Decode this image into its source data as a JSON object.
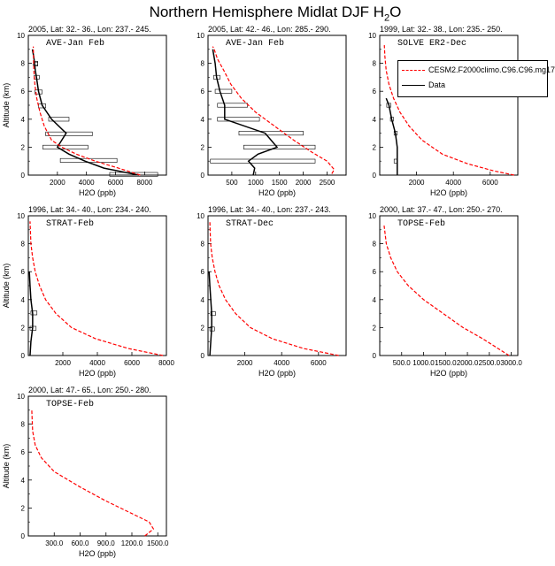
{
  "figure": {
    "title_main": "Northern Hemisphere Midlat DJF H",
    "title_sub": "2",
    "title_end": "O"
  },
  "legend": {
    "model_label": "CESM2.F2000climo.C96.C96.mg17",
    "data_label": "Data",
    "model_color": "#ff0000",
    "data_color": "#000000"
  },
  "chart_data": [
    {
      "type": "line",
      "header": "2005, Lat: 32.- 36., Lon: 237.- 245.",
      "label": "AVE-Jan Feb",
      "xlabel": "H2O (ppb)",
      "ylabel": "Altitude (km)",
      "xlim": [
        0,
        9500
      ],
      "ylim": [
        0,
        10
      ],
      "xticks": [
        2000,
        4000,
        6000,
        8000
      ],
      "xticklabels": [
        "2000",
        "4000",
        "6000",
        "8000"
      ],
      "yticks": [
        0,
        2,
        4,
        6,
        8,
        10
      ],
      "model": {
        "x": [
          7700,
          6200,
          4600,
          3300,
          2300,
          1600,
          1100,
          800,
          580,
          450,
          380,
          340
        ],
        "y": [
          0,
          0.5,
          1,
          1.5,
          2,
          2.5,
          3.5,
          4.5,
          5.5,
          6.5,
          7.5,
          9.2
        ]
      },
      "obs": {
        "x": [
          7600,
          5200,
          3900,
          2800,
          2000,
          2600,
          1600,
          950,
          700,
          560,
          480,
          430,
          370,
          280
        ],
        "y": [
          0,
          0.5,
          1,
          1.5,
          2,
          3,
          4,
          5,
          6,
          7,
          7.5,
          8,
          8.5,
          9
        ]
      },
      "bars": [
        {
          "y": 0.05,
          "lo": 5600,
          "hi": 8900
        },
        {
          "y": 1.05,
          "lo": 2200,
          "hi": 6100
        },
        {
          "y": 2.0,
          "lo": 1000,
          "hi": 4100
        },
        {
          "y": 2.95,
          "lo": 1200,
          "hi": 4400
        },
        {
          "y": 4.0,
          "lo": 1400,
          "hi": 2800
        },
        {
          "y": 4.95,
          "lo": 700,
          "hi": 1200
        },
        {
          "y": 5.95,
          "lo": 450,
          "hi": 950
        },
        {
          "y": 7.0,
          "lo": 400,
          "hi": 750
        },
        {
          "y": 7.95,
          "lo": 350,
          "hi": 650
        },
        {
          "y": 8.0,
          "lo": 350,
          "hi": 650
        }
      ]
    },
    {
      "type": "line",
      "header": "2005, Lat: 42.- 46., Lon: 285.- 290.",
      "label": "AVE-Jan Feb",
      "xlabel": "H2O (ppb)",
      "ylabel": "",
      "xlim": [
        0,
        2900
      ],
      "ylim": [
        0,
        10
      ],
      "xticks": [
        500,
        1000,
        1500,
        2000,
        2500
      ],
      "xticklabels": [
        "500",
        "1000",
        "1500",
        "2000",
        "2500"
      ],
      "yticks": [
        0,
        2,
        4,
        6,
        8,
        10
      ],
      "model": {
        "x": [
          2600,
          2650,
          2500,
          2200,
          1800,
          1400,
          1000,
          700,
          480,
          330,
          200,
          130,
          100
        ],
        "y": [
          0.1,
          0.4,
          1,
          1.6,
          2.5,
          3.5,
          4.5,
          5.5,
          6.5,
          7.5,
          8.3,
          9,
          9.2
        ]
      },
      "obs": {
        "x": [
          950,
          980,
          850,
          1050,
          1450,
          1200,
          350,
          350,
          250,
          180,
          150,
          100
        ],
        "y": [
          0,
          0.5,
          1,
          1.5,
          2,
          3,
          4,
          5,
          6,
          7,
          8,
          9
        ]
      },
      "bars": [
        {
          "y": 1.0,
          "lo": 50,
          "hi": 2250
        },
        {
          "y": 2.0,
          "lo": 750,
          "hi": 2250
        },
        {
          "y": 3.0,
          "lo": 650,
          "hi": 2000
        },
        {
          "y": 4.0,
          "lo": 200,
          "hi": 1080
        },
        {
          "y": 5.0,
          "lo": 200,
          "hi": 830
        },
        {
          "y": 6.0,
          "lo": 150,
          "hi": 500
        },
        {
          "y": 7.0,
          "lo": 120,
          "hi": 250
        }
      ]
    },
    {
      "type": "line",
      "header": "1999, Lat: 32.- 38., Lon: 235.- 250.",
      "label": "SOLVE ER2-Dec",
      "xlabel": "H2O (ppb)",
      "ylabel": "",
      "xlim": [
        0,
        7500
      ],
      "ylim": [
        0,
        10
      ],
      "xticks": [
        2000,
        4000,
        6000
      ],
      "xticklabels": [
        "2000",
        "4000",
        "6000"
      ],
      "yticks": [
        0,
        2,
        4,
        6,
        8,
        10
      ],
      "model": {
        "x": [
          7300,
          6200,
          4800,
          3400,
          2300,
          1600,
          1100,
          750,
          500,
          350,
          280,
          250
        ],
        "y": [
          0,
          0.3,
          0.8,
          1.5,
          2.5,
          3.5,
          4.5,
          5.5,
          6.5,
          7.5,
          8.5,
          9.3
        ]
      },
      "obs": {
        "x": [
          950,
          950,
          950,
          850,
          650,
          500,
          350
        ],
        "y": [
          0,
          1,
          2,
          3,
          4,
          5,
          5.5
        ]
      },
      "bars": [
        {
          "y": 1.0,
          "lo": 780,
          "hi": 950
        },
        {
          "y": 3.0,
          "lo": 780,
          "hi": 950
        },
        {
          "y": 4.0,
          "lo": 580,
          "hi": 750
        },
        {
          "y": 5.0,
          "lo": 380,
          "hi": 600
        }
      ]
    },
    {
      "type": "line",
      "header": "1996, Lat: 34.- 40., Lon: 234.- 240.",
      "label": "STRAT-Feb",
      "xlabel": "H2O (ppb)",
      "ylabel": "Altitude (km)",
      "xlim": [
        0,
        8000
      ],
      "ylim": [
        0,
        10
      ],
      "xticks": [
        2000,
        4000,
        6000,
        8000
      ],
      "xticklabels": [
        "2000",
        "4000",
        "6000",
        "8000"
      ],
      "yticks": [
        0,
        2,
        4,
        6,
        8,
        10
      ],
      "model": {
        "x": [
          7800,
          5800,
          3900,
          2500,
          1600,
          1000,
          650,
          400,
          250,
          150,
          100
        ],
        "y": [
          0,
          0.5,
          1.2,
          2,
          3,
          4,
          5,
          6,
          7,
          8,
          9.6
        ]
      },
      "obs": {
        "x": [
          100,
          150,
          250,
          250,
          150,
          100,
          60
        ],
        "y": [
          0,
          1,
          2,
          3,
          4,
          5,
          6
        ]
      },
      "bars": [
        {
          "y": 1.95,
          "lo": 100,
          "hi": 450
        },
        {
          "y": 3.05,
          "lo": 150,
          "hi": 500
        }
      ]
    },
    {
      "type": "line",
      "header": "1996, Lat: 34.- 40., Lon: 237.- 243.",
      "label": "STRAT-Dec",
      "xlabel": "H2O (ppb)",
      "ylabel": "",
      "xlim": [
        0,
        7500
      ],
      "ylim": [
        0,
        10
      ],
      "xticks": [
        2000,
        4000,
        6000
      ],
      "xticklabels": [
        "2000",
        "4000",
        "6000"
      ],
      "yticks": [
        0,
        2,
        4,
        6,
        8,
        10
      ],
      "model": {
        "x": [
          7100,
          5200,
          3500,
          2300,
          1500,
          950,
          600,
          380,
          230,
          140,
          100
        ],
        "y": [
          0,
          0.5,
          1.2,
          2,
          3,
          4,
          5,
          6,
          7,
          8,
          9.6
        ]
      },
      "obs": {
        "x": [
          100,
          150,
          200,
          200,
          150,
          100,
          60
        ],
        "y": [
          0,
          1,
          2,
          3,
          4,
          5,
          6
        ]
      },
      "bars": [
        {
          "y": 1.9,
          "lo": 100,
          "hi": 350
        },
        {
          "y": 3.0,
          "lo": 150,
          "hi": 400
        }
      ]
    },
    {
      "type": "line",
      "header": "2000, Lat: 37.- 47., Lon: 250.- 270.",
      "label": "TOPSE-Feb",
      "xlabel": "H2O (ppb)",
      "ylabel": "",
      "xlim": [
        0,
        3150
      ],
      "ylim": [
        0,
        10
      ],
      "xticks": [
        500,
        1000,
        1500,
        2000,
        2500,
        3000
      ],
      "xticklabels": [
        "500.0",
        "1000.0",
        "1500.0",
        "2000.0",
        "2500.0",
        "3000.0"
      ],
      "yticks": [
        0,
        2,
        4,
        6,
        8,
        10
      ],
      "model": {
        "x": [
          2950,
          2700,
          2350,
          1900,
          1450,
          1000,
          650,
          400,
          250,
          150,
          100
        ],
        "y": [
          0,
          0.5,
          1.2,
          2,
          3,
          4,
          5,
          6,
          7,
          8,
          9.3
        ]
      },
      "obs": null,
      "bars": []
    },
    {
      "type": "line",
      "header": "2000, Lat: 47.- 65., Lon: 250.- 280.",
      "label": "TOPSE-Feb",
      "xlabel": "H2O (ppb)",
      "ylabel": "Altitude (km)",
      "xlim": [
        0,
        1600
      ],
      "ylim": [
        0,
        10
      ],
      "xticks": [
        300,
        600,
        900,
        1200,
        1500
      ],
      "xticklabels": [
        "300.0",
        "600.0",
        "900.0",
        "1200.0",
        "1500.0"
      ],
      "yticks": [
        0,
        2,
        4,
        6,
        8,
        10
      ],
      "model": {
        "x": [
          1350,
          1450,
          1400,
          1200,
          900,
          600,
          300,
          150,
          80,
          50,
          40
        ],
        "y": [
          0,
          0.5,
          1,
          1.6,
          2.5,
          3.5,
          4.6,
          5.6,
          6.5,
          7.5,
          9
        ]
      },
      "obs": null,
      "bars": []
    }
  ]
}
